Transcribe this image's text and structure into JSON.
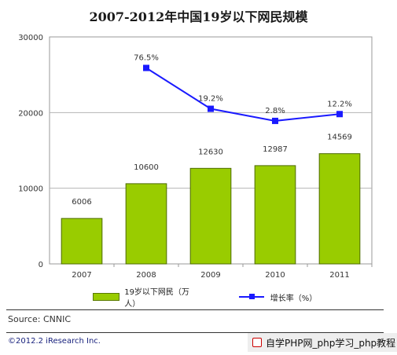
{
  "chart_data": {
    "type": "bar",
    "title": "2007-2012年中国19岁以下网民规模",
    "categories": [
      "2007",
      "2008",
      "2009",
      "2010",
      "2011"
    ],
    "ylim": [
      0,
      30000
    ],
    "yticks": [
      "0",
      "10000",
      "20000",
      "30000"
    ],
    "grid": true,
    "legend_position": "bottom",
    "series": [
      {
        "name": "19岁以下网民（万人）",
        "type": "bar",
        "color": "#99cc00",
        "values": [
          6006,
          10600,
          12630,
          12987,
          14569
        ],
        "labels": [
          "6006",
          "10600",
          "12630",
          "12987",
          "14569"
        ]
      },
      {
        "name": "增长率（%）",
        "type": "line",
        "color": "#1a1aff",
        "values": [
          null,
          76.5,
          19.2,
          2.8,
          12.2
        ],
        "labels": [
          "",
          "76.5%",
          "19.2%",
          "2.8%",
          "12.2%"
        ],
        "plotted_on_left_axis": [
          null,
          25900,
          20500,
          18900,
          19800
        ]
      }
    ]
  },
  "footer": {
    "source": "Source:  CNNIC",
    "copyright": "©2012.2 iResearch Inc.",
    "watermark": "自学PHP网_php学习_php教程"
  }
}
